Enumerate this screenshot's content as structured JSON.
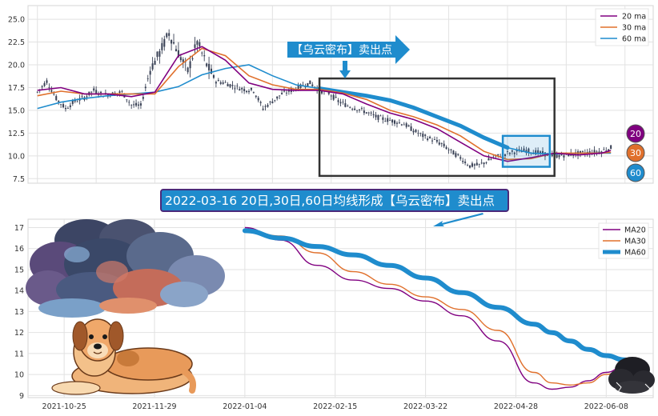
{
  "annotations": {
    "top_arrow_text": "【乌云密布】卖出点",
    "mid_banner_text": "2022-03-16 20日,30日,60日均线形成【乌云密布】卖出点",
    "badges": [
      "20",
      "30",
      "60"
    ]
  },
  "colors": {
    "ma20": "#800080",
    "ma30": "#e0702c",
    "ma60": "#1f8ccd",
    "candles": "#3a4256",
    "banner": "#1f8ccd",
    "box": "#333333"
  },
  "chart_data": [
    {
      "type": "candlestick",
      "legend": [
        "20 ma",
        "30 ma",
        "60 ma"
      ],
      "legend_position": "top-right",
      "grid": true,
      "ylim": [
        7,
        26.5
      ],
      "yticks": [
        "7.5",
        "10.0",
        "12.5",
        "15.0",
        "17.5",
        "20.0",
        "22.5",
        "25.0"
      ],
      "price_x": [
        0,
        4,
        8,
        12,
        16,
        20,
        24,
        28,
        32,
        36,
        40,
        44,
        48,
        52,
        56,
        60,
        64,
        68,
        72,
        76,
        80,
        84,
        88,
        92,
        96,
        100,
        104,
        108,
        112,
        116,
        120,
        124,
        128,
        132,
        136,
        140,
        144,
        148,
        152,
        156,
        160,
        164,
        168,
        172,
        176,
        180,
        184,
        188,
        192,
        196,
        200,
        204,
        208,
        212,
        216,
        220,
        224,
        228,
        232,
        236,
        240,
        244
      ],
      "price": [
        17.0,
        18.2,
        16.3,
        15.2,
        16.0,
        16.4,
        17.2,
        16.7,
        16.8,
        17.0,
        15.6,
        15.5,
        19.5,
        21.3,
        23.5,
        21.3,
        19.3,
        22.5,
        20.0,
        18.2,
        18.0,
        17.6,
        17.3,
        17.2,
        15.2,
        16.0,
        16.8,
        17.2,
        17.6,
        18.0,
        17.2,
        16.9,
        16.0,
        15.5,
        15.2,
        14.8,
        14.3,
        14.0,
        13.8,
        13.5,
        12.8,
        12.2,
        11.8,
        11.3,
        10.5,
        9.8,
        8.9,
        9.0,
        9.5,
        10.0,
        10.3,
        10.5,
        10.6,
        10.4,
        10.2,
        10.0,
        10.1,
        10.2,
        10.3,
        10.4,
        10.5,
        10.9
      ],
      "ma_x": [
        0,
        10,
        20,
        30,
        40,
        50,
        60,
        70,
        80,
        90,
        100,
        110,
        120,
        130,
        140,
        150,
        160,
        170,
        180,
        190,
        200,
        210,
        220,
        230,
        240,
        244
      ],
      "ma20": [
        17.2,
        17.5,
        16.8,
        16.8,
        16.5,
        17.0,
        21.0,
        22.0,
        20.5,
        18.0,
        17.3,
        17.2,
        17.2,
        16.8,
        15.7,
        14.7,
        14.0,
        13.0,
        11.5,
        10.0,
        9.4,
        9.8,
        10.3,
        10.1,
        10.3,
        10.6
      ],
      "ma30": [
        16.6,
        17.1,
        16.8,
        16.8,
        16.8,
        16.8,
        19.8,
        21.8,
        21.0,
        18.8,
        17.8,
        17.3,
        17.3,
        16.9,
        16.2,
        15.0,
        14.3,
        13.4,
        12.2,
        10.5,
        9.6,
        9.7,
        10.3,
        10.3,
        10.3,
        10.4
      ],
      "ma60": [
        15.2,
        15.9,
        16.3,
        16.6,
        16.8,
        17.0,
        17.6,
        18.9,
        19.6,
        20.0,
        18.8,
        17.8,
        17.4,
        17.0,
        16.6,
        16.1,
        15.3,
        14.3,
        13.3,
        12.0,
        10.9,
        10.3,
        10.2,
        10.3,
        10.3,
        10.3
      ],
      "highlight_box": {
        "x": [
          120,
          220
        ],
        "y": [
          7.8,
          18.5
        ]
      },
      "small_box": {
        "x": [
          198,
          218
        ],
        "y": [
          8.8,
          12.2
        ]
      }
    },
    {
      "type": "line",
      "legend": [
        "MA20",
        "MA30",
        "MA60"
      ],
      "legend_position": "top-right",
      "grid": true,
      "ylim": [
        8.9,
        17.4
      ],
      "yticks": [
        "9",
        "10",
        "11",
        "12",
        "13",
        "14",
        "15",
        "16",
        "17"
      ],
      "xticks": [
        "2021-10-25",
        "2021-11-29",
        "2022-01-04",
        "2022-02-15",
        "2022-03-22",
        "2022-04-28",
        "2022-06-08"
      ],
      "xtick_idx": [
        0,
        25,
        50,
        75,
        100,
        125,
        150
      ],
      "xlim": [
        -10,
        163
      ],
      "x": [
        50,
        60,
        70,
        80,
        90,
        100,
        110,
        120,
        130,
        135,
        140,
        145,
        150,
        155,
        158
      ],
      "series": [
        {
          "name": "MA20",
          "values": [
            17.0,
            16.4,
            15.2,
            14.5,
            14.1,
            13.5,
            12.8,
            11.6,
            9.6,
            9.3,
            9.4,
            9.7,
            10.1,
            10.4,
            10.6
          ]
        },
        {
          "name": "MA30",
          "values": [
            16.9,
            16.6,
            15.8,
            14.9,
            14.3,
            13.7,
            13.1,
            12.1,
            10.1,
            9.6,
            9.5,
            9.6,
            10.0,
            10.3,
            10.5
          ]
        },
        {
          "name": "MA60",
          "values": [
            16.85,
            16.5,
            16.1,
            15.7,
            15.2,
            14.6,
            13.9,
            13.2,
            12.4,
            12.0,
            11.6,
            11.2,
            10.9,
            10.7,
            10.6
          ]
        }
      ]
    }
  ]
}
